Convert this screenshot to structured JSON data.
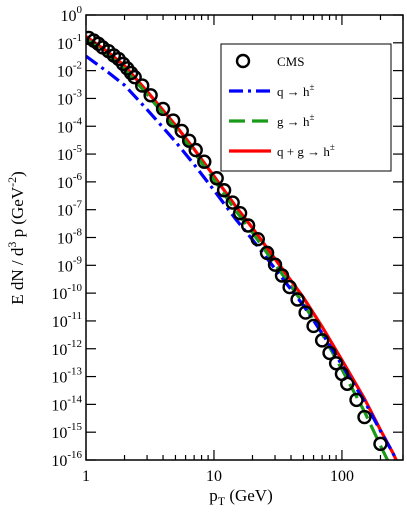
{
  "chart_data": {
    "type": "line",
    "xlabel": {
      "base": "p",
      "sub": "T",
      "rest": " (GeV)"
    },
    "ylabel": {
      "pre": "E dN / d",
      "sup1": "3",
      "mid": " p (GeV",
      "sup2": "-2",
      "post": ")"
    },
    "x_scale": "log",
    "y_scale": "log",
    "xlim": [
      1,
      300
    ],
    "ylim_exponents": [
      -16,
      0
    ],
    "x_ticks": [
      {
        "value": 1,
        "label": "1"
      },
      {
        "value": 10,
        "label": "10"
      },
      {
        "value": 100,
        "label": "100"
      }
    ],
    "y_ticks": [
      {
        "exp": 0,
        "base": "10",
        "sup": "0"
      },
      {
        "exp": -1,
        "base": "10",
        "sup": "-1"
      },
      {
        "exp": -2,
        "base": "10",
        "sup": "-2"
      },
      {
        "exp": -3,
        "base": "10",
        "sup": "-3"
      },
      {
        "exp": -4,
        "base": "10",
        "sup": "-4"
      },
      {
        "exp": -5,
        "base": "10",
        "sup": "-5"
      },
      {
        "exp": -6,
        "base": "10",
        "sup": "-6"
      },
      {
        "exp": -7,
        "base": "10",
        "sup": "-7"
      },
      {
        "exp": -8,
        "base": "10",
        "sup": "-8"
      },
      {
        "exp": -9,
        "base": "10",
        "sup": "-9"
      },
      {
        "exp": -10,
        "base": "10",
        "sup": "-10"
      },
      {
        "exp": -11,
        "base": "10",
        "sup": "-11"
      },
      {
        "exp": -12,
        "base": "10",
        "sup": "-12"
      },
      {
        "exp": -13,
        "base": "10",
        "sup": "-13"
      },
      {
        "exp": -14,
        "base": "10",
        "sup": "-14"
      },
      {
        "exp": -15,
        "base": "10",
        "sup": "-15"
      },
      {
        "exp": -16,
        "base": "10",
        "sup": "-16"
      }
    ],
    "legend_position": "top-right",
    "legend": [
      {
        "kind": "marker",
        "label": "CMS"
      },
      {
        "kind": "line",
        "series": "q",
        "label_a": "q",
        "label_b": "h",
        "label_sup": "±"
      },
      {
        "kind": "line",
        "series": "g",
        "label_a": "g",
        "label_b": "h",
        "label_sup": "±"
      },
      {
        "kind": "line",
        "series": "qg",
        "label_a": "q + g",
        "label_b": "h",
        "label_sup": "±"
      }
    ],
    "scatter": {
      "name": "CMS",
      "marker": "open-circle",
      "color": "#000000",
      "x": [
        1.05,
        1.15,
        1.25,
        1.35,
        1.5,
        1.65,
        1.8,
        1.95,
        2.1,
        2.25,
        2.4,
        2.75,
        3.2,
        4.0,
        4.8,
        5.6,
        6.4,
        7.2,
        8.4,
        10.5,
        12.0,
        14.0,
        16.0,
        18.5,
        22.0,
        26.0,
        30.0,
        34.0,
        39.0,
        45.0,
        52.0,
        60.0,
        70.0,
        80.0,
        90.0,
        100.0,
        110.0,
        130.0,
        150.0,
        200.0
      ],
      "y": [
        0.15,
        0.12,
        0.092,
        0.068,
        0.05,
        0.035,
        0.026,
        0.0175,
        0.012,
        0.0082,
        0.0058,
        0.0029,
        0.0013,
        0.00042,
        0.00016,
        6.8e-05,
        3e-05,
        1.4e-05,
        5.3e-06,
        1.35e-06,
        5e-07,
        1.8e-07,
        7.5e-08,
        2.7e-08,
        8.7e-09,
        2.8e-09,
        1.05e-09,
        4.3e-10,
        1.65e-10,
        5.9e-11,
        2e-11,
        6.6e-12,
        2e-12,
        7.1e-13,
        3e-13,
        1.25e-13,
        5.5e-14,
        1.45e-14,
        3.5e-15,
        3.8e-16
      ]
    },
    "series": [
      {
        "key": "qg",
        "color": "#ff0000",
        "style": "solid",
        "x": [
          1,
          1.5,
          2,
          3,
          5,
          7,
          10,
          15,
          20,
          30,
          50,
          70,
          100,
          150,
          200,
          250,
          300
        ],
        "y": [
          0.17,
          0.045,
          0.015,
          0.0018,
          0.00011,
          1.5e-05,
          1.6e-06,
          1.2e-07,
          2.2e-08,
          1.7e-09,
          7e-11,
          6.2e-12,
          3.9e-13,
          1.6e-14,
          1.2e-15,
          1.8e-16,
          3e-17
        ]
      },
      {
        "key": "g",
        "color": "#1a9a1a",
        "style": "dashed",
        "x": [
          1,
          1.5,
          2,
          3,
          5,
          7,
          10,
          15,
          20,
          30,
          50,
          70,
          100,
          150,
          200,
          250,
          300
        ],
        "y": [
          0.14,
          0.035,
          0.0115,
          0.0014,
          8.5e-05,
          1.15e-05,
          1.2e-06,
          8.5e-08,
          1.5e-08,
          1.1e-09,
          4.2e-11,
          3.4e-12,
          1.8e-13,
          5.5e-15,
          3.3e-16,
          4e-17,
          5e-18
        ]
      },
      {
        "key": "q",
        "color": "#0000ff",
        "style": "dashdot",
        "x": [
          1,
          1.5,
          2,
          3,
          5,
          7,
          10,
          15,
          20,
          30,
          50,
          70,
          100,
          150,
          200,
          250,
          300
        ],
        "y": [
          0.033,
          0.0085,
          0.003,
          0.0004,
          2.8e-05,
          4.2e-06,
          5e-07,
          4.2e-08,
          8.3e-09,
          7.5e-10,
          3.6e-11,
          3.6e-12,
          2.6e-13,
          1.3e-14,
          1.1e-15,
          1.8e-16,
          3e-17
        ]
      }
    ]
  }
}
